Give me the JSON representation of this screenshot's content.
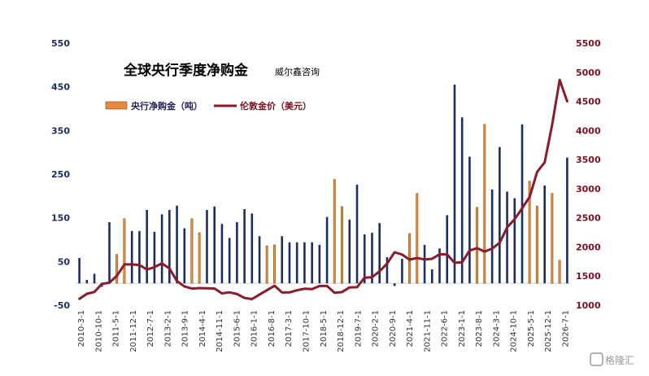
{
  "chart_data": {
    "type": "bar",
    "title": "全球央行季度净购金",
    "subtitle": "威尔鑫咨询",
    "watermark": "格隆汇",
    "ylim_left": [
      -50,
      550
    ],
    "yticks_left": [
      "550",
      "450",
      "350",
      "250",
      "150",
      "50",
      "-50"
    ],
    "ylim_right": [
      1000,
      5500
    ],
    "yticks_right": [
      "5500",
      "5000",
      "4500",
      "4000",
      "3500",
      "3000",
      "2500",
      "2000",
      "1500",
      "1000"
    ],
    "x_ticks": [
      "2010-3-1",
      "2010-10-1",
      "2011-5-1",
      "2011-12-1",
      "2012-7-1",
      "2013-2-1",
      "2013-9-1",
      "2014-4-1",
      "2014-11-1",
      "2015-6-1",
      "2016-1-1",
      "2016-8-1",
      "2017-3-1",
      "2017-10-1",
      "2018-5-1",
      "2018-12-1",
      "2019-7-1",
      "2020-2-1",
      "2020-9-1",
      "2021-4-1",
      "2021-11-1",
      "2022-6-1",
      "2023-1-1",
      "2023-8-1",
      "2024-3-1",
      "2024-10-1",
      "2025-5-1",
      "2025-12-1",
      "2026-7-1"
    ],
    "colors": {
      "bar": "#1c2e63",
      "bar_highlight": "#e8883a",
      "line": "#8b1a2b",
      "tick_left": "#1c2e63",
      "tick_right": "#7a1020"
    },
    "series": [
      {
        "name": "央行净购金（吨）",
        "values": [
          58,
          8,
          22,
          -8,
          140,
          66,
          148,
          120,
          120,
          168,
          118,
          158,
          168,
          178,
          126,
          148,
          116,
          168,
          176,
          136,
          104,
          140,
          170,
          160,
          108,
          86,
          88,
          108,
          94,
          94,
          94,
          94,
          88,
          152,
          238,
          176,
          146,
          226,
          112,
          116,
          138,
          60,
          -6,
          56,
          114,
          206,
          88,
          32,
          80,
          156,
          455,
          380,
          290,
          174,
          364,
          215,
          312,
          210,
          195,
          364,
          234,
          177,
          224,
          206,
          53,
          288
        ],
        "highlight": [
          0,
          0,
          0,
          0,
          0,
          1,
          1,
          0,
          0,
          0,
          0,
          0,
          0,
          0,
          0,
          1,
          1,
          0,
          0,
          0,
          0,
          0,
          0,
          0,
          0,
          1,
          1,
          0,
          0,
          0,
          0,
          0,
          0,
          0,
          1,
          1,
          0,
          0,
          0,
          0,
          0,
          0,
          0,
          0,
          1,
          1,
          0,
          0,
          0,
          0,
          0,
          0,
          0,
          1,
          1,
          0,
          0,
          0,
          0,
          0,
          1,
          1,
          0,
          1,
          1,
          0
        ]
      },
      {
        "name": "伦敦金价（美元）",
        "axis": "right",
        "values": [
          1109,
          1196,
          1227,
          1367,
          1386,
          1506,
          1700,
          1700,
          1690,
          1612,
          1653,
          1718,
          1631,
          1415,
          1322,
          1285,
          1294,
          1290,
          1287,
          1203,
          1221,
          1192,
          1125,
          1105,
          1183,
          1258,
          1335,
          1219,
          1220,
          1256,
          1283,
          1276,
          1330,
          1330,
          1213,
          1226,
          1305,
          1309,
          1472,
          1481,
          1582,
          1713,
          1909,
          1870,
          1783,
          1810,
          1785,
          1797,
          1874,
          1871,
          1729,
          1737,
          1939,
          1979,
          1921,
          1971,
          2071,
          2336,
          2477,
          2665,
          2860,
          3289,
          3451,
          4100,
          4870,
          4500
        ]
      }
    ]
  }
}
